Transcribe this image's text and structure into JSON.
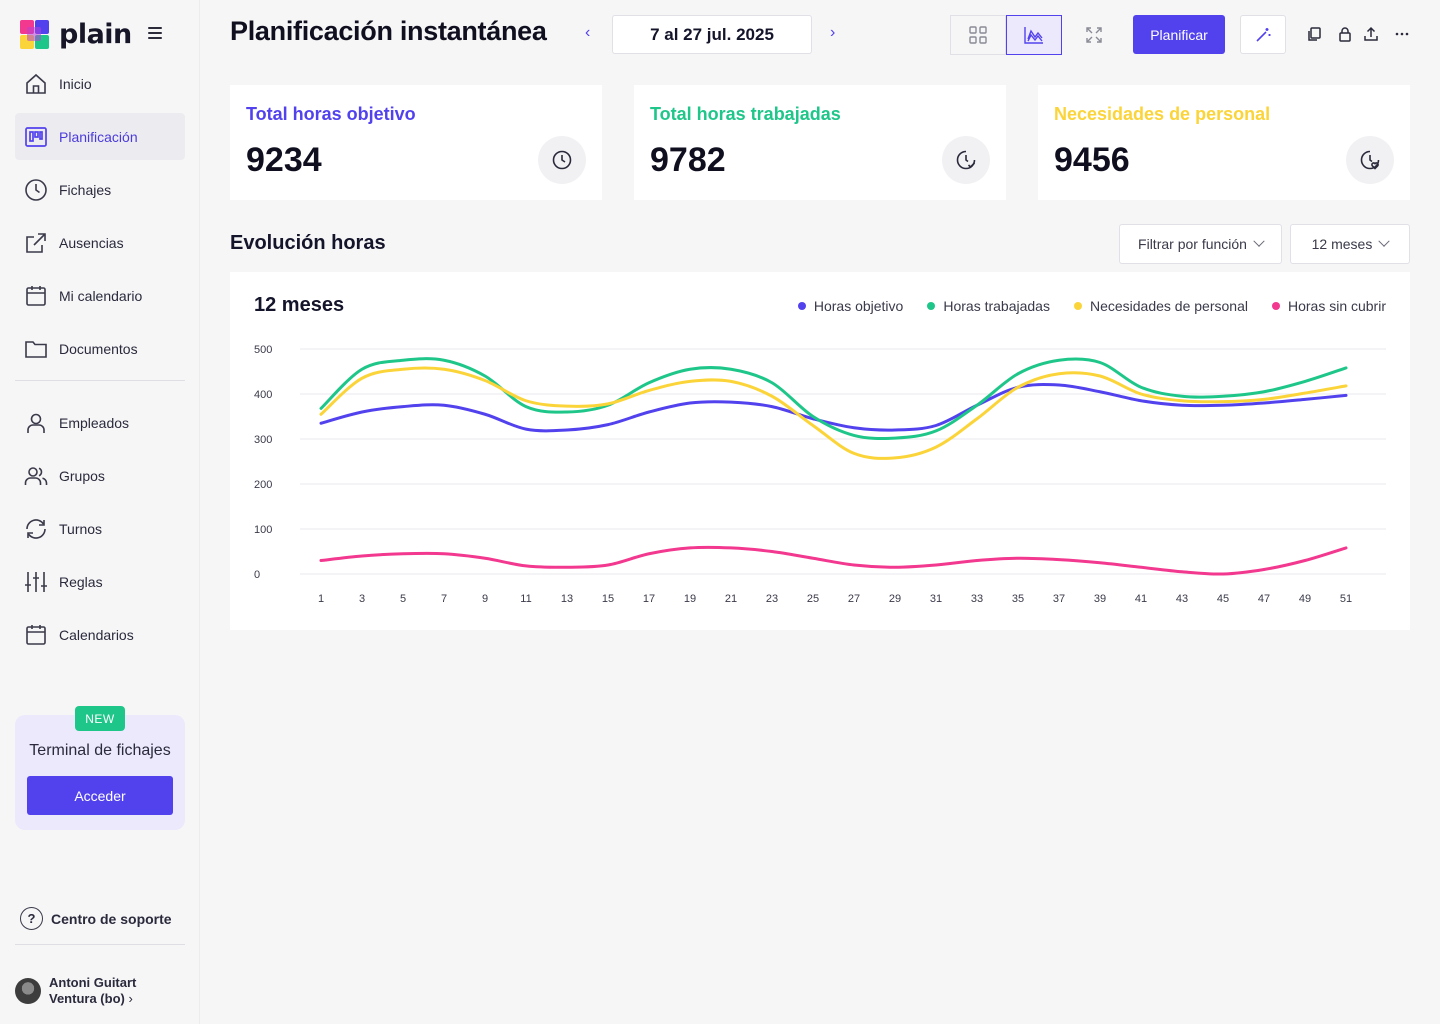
{
  "app": {
    "logo_text": "plain",
    "colors": {
      "accent": "#5242ee",
      "green": "#1fc68a",
      "yellow": "#fbd43a",
      "pink": "#f2388f",
      "purple": "#5242ee"
    }
  },
  "sidebar": {
    "items_top": [
      {
        "label": "Inicio",
        "icon": "home-icon"
      },
      {
        "label": "Planificación",
        "icon": "planning-board-icon",
        "active": true
      },
      {
        "label": "Fichajes",
        "icon": "clock-icon"
      },
      {
        "label": "Ausencias",
        "icon": "external-link-icon"
      },
      {
        "label": "Mi calendario",
        "icon": "calendar-icon"
      },
      {
        "label": "Documentos",
        "icon": "folder-icon"
      }
    ],
    "items_bottom": [
      {
        "label": "Empleados",
        "icon": "user-icon"
      },
      {
        "label": "Grupos",
        "icon": "users-icon"
      },
      {
        "label": "Turnos",
        "icon": "rotate-icon"
      },
      {
        "label": "Reglas",
        "icon": "sliders-icon"
      },
      {
        "label": "Calendarios",
        "icon": "calendar-icon"
      }
    ],
    "promo": {
      "badge": "NEW",
      "title": "Terminal de fichajes",
      "button": "Acceder"
    },
    "support": "Centro de soporte",
    "user": {
      "line1": "Antoni Guitart",
      "line2": "Ventura (bo)"
    }
  },
  "header": {
    "title": "Planificación instantánea",
    "date_range": "7 al 27 jul. 2025",
    "plan_button": "Planificar"
  },
  "kpis": [
    {
      "label": "Total horas objetivo",
      "value": "9234",
      "color": "#5242ee",
      "icon": "clock-icon"
    },
    {
      "label": "Total horas trabajadas",
      "value": "9782",
      "color": "#1fc68a",
      "icon": "clock-check-icon"
    },
    {
      "label": "Necesidades de personal",
      "value": "9456",
      "color": "#fbd43a",
      "icon": "clock-heart-icon"
    }
  ],
  "section": {
    "title": "Evolución horas",
    "filter_function": "Filtrar por función",
    "filter_period": "12 meses"
  },
  "chart_data": {
    "type": "line",
    "title": "12 meses",
    "x": [
      1,
      3,
      5,
      7,
      9,
      11,
      13,
      15,
      17,
      19,
      21,
      23,
      25,
      27,
      29,
      31,
      33,
      35,
      37,
      39,
      41,
      43,
      45,
      47,
      49,
      51
    ],
    "ylim": [
      0,
      500
    ],
    "yticks": [
      0,
      100,
      200,
      300,
      400,
      500
    ],
    "grid": true,
    "legend_position": "top-right",
    "series": [
      {
        "name": "Horas objetivo",
        "color": "#5242ee",
        "values": [
          335,
          360,
          372,
          375,
          355,
          322,
          320,
          332,
          360,
          380,
          382,
          372,
          345,
          325,
          320,
          330,
          375,
          415,
          420,
          405,
          385,
          375,
          375,
          380,
          388,
          397
        ]
      },
      {
        "name": "Horas trabajadas",
        "color": "#1fc68a",
        "values": [
          368,
          455,
          475,
          475,
          440,
          372,
          360,
          375,
          425,
          455,
          455,
          425,
          350,
          308,
          302,
          318,
          375,
          445,
          475,
          470,
          415,
          395,
          395,
          405,
          428,
          458
        ]
      },
      {
        "name": "Necesidades de personal",
        "color": "#fbd43a",
        "values": [
          355,
          435,
          455,
          455,
          430,
          385,
          373,
          378,
          408,
          428,
          428,
          395,
          330,
          268,
          258,
          282,
          345,
          415,
          445,
          440,
          400,
          385,
          383,
          388,
          402,
          418
        ]
      },
      {
        "name": "Horas sin cubrir",
        "color": "#f2388f",
        "values": [
          30,
          40,
          45,
          45,
          35,
          18,
          15,
          20,
          45,
          58,
          58,
          50,
          35,
          20,
          15,
          20,
          30,
          35,
          32,
          25,
          15,
          5,
          0,
          10,
          30,
          58
        ]
      }
    ]
  }
}
